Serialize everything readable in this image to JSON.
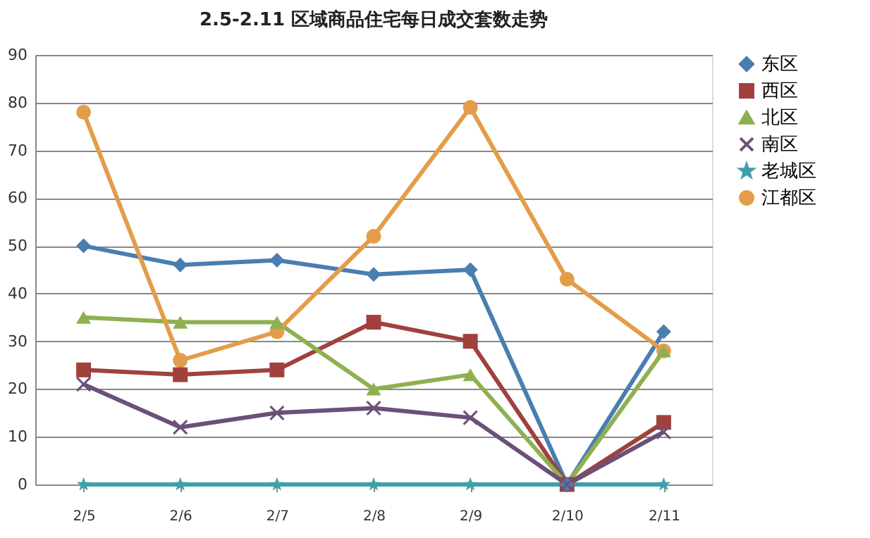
{
  "chart_data": {
    "type": "line",
    "title": "2.5-2.11 区域商品住宅每日成交套数走势",
    "categories": [
      "2/5",
      "2/6",
      "2/7",
      "2/8",
      "2/9",
      "2/10",
      "2/11"
    ],
    "series": [
      {
        "name": "东区",
        "color": "#4a7eb0",
        "marker": "diamond",
        "values": [
          50,
          46,
          47,
          44,
          45,
          0,
          32
        ]
      },
      {
        "name": "西区",
        "color": "#a0413e",
        "marker": "square",
        "values": [
          24,
          23,
          24,
          34,
          30,
          0,
          13
        ]
      },
      {
        "name": "北区",
        "color": "#8fb050",
        "marker": "triangle",
        "values": [
          35,
          34,
          34,
          20,
          23,
          0,
          28
        ]
      },
      {
        "name": "南区",
        "color": "#6b5078",
        "marker": "cross",
        "values": [
          21,
          12,
          15,
          16,
          14,
          0,
          11
        ]
      },
      {
        "name": "老城区",
        "color": "#3fa0a8",
        "marker": "star",
        "values": [
          0,
          0,
          0,
          0,
          0,
          0,
          0
        ]
      },
      {
        "name": "江都区",
        "color": "#e39d4a",
        "marker": "circle",
        "values": [
          78,
          26,
          32,
          52,
          79,
          43,
          28
        ]
      }
    ],
    "ylim": [
      0,
      90
    ],
    "yticks": [
      0,
      10,
      20,
      30,
      40,
      50,
      60,
      70,
      80,
      90
    ],
    "grid": "y",
    "legend": "right"
  }
}
